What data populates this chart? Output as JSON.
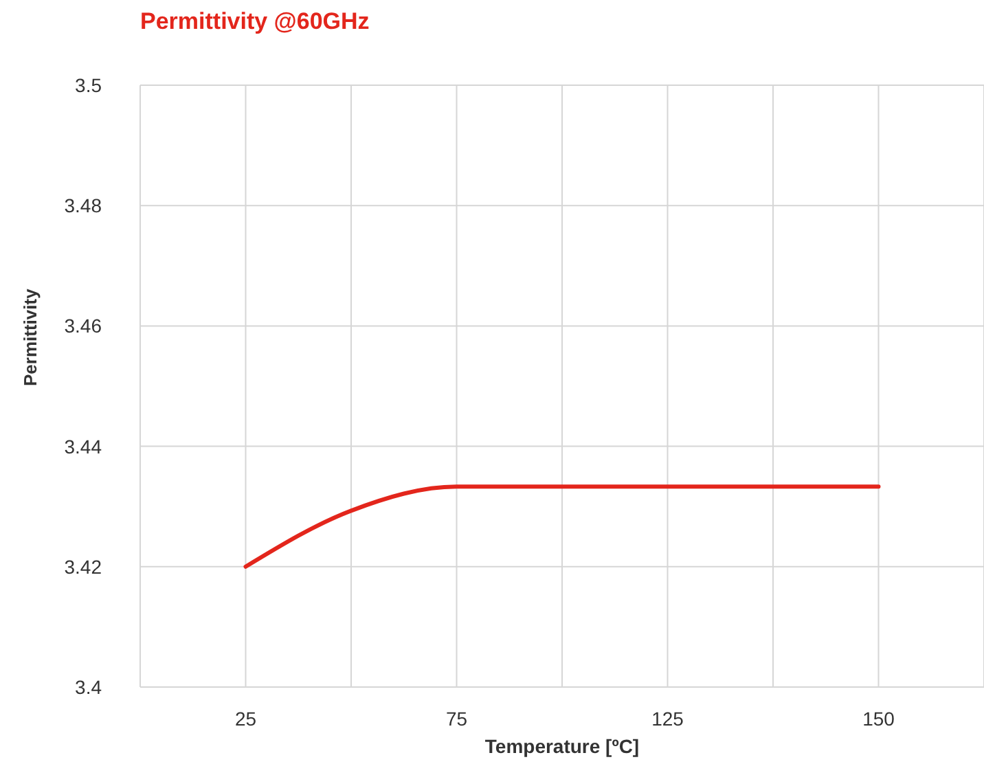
{
  "chart_data": {
    "type": "line",
    "title": "Permittivity @60GHz",
    "xlabel": "Temperature [ºC]",
    "ylabel": "Permittivity",
    "categories": [
      "25",
      null,
      "75",
      null,
      "125",
      null,
      "150"
    ],
    "series": [
      {
        "color": "#e3261c",
        "values": [
          3.42,
          3.4293,
          3.4333,
          3.4333,
          3.4333,
          3.4333,
          3.4333
        ]
      }
    ],
    "ylim": [
      3.4,
      3.5
    ],
    "yticks": [
      3.4,
      3.42,
      3.44,
      3.46,
      3.48,
      3.5
    ],
    "grid": true,
    "legend": false,
    "marker": "none",
    "line_style": "solid"
  }
}
